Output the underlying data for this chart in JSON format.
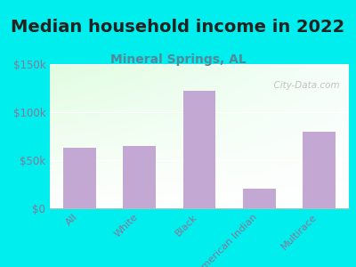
{
  "title": "Median household income in 2022",
  "subtitle": "Mineral Springs, AL",
  "categories": [
    "All",
    "White",
    "Black",
    "American Indian",
    "Multirace"
  ],
  "values": [
    63000,
    65000,
    122000,
    20000,
    80000
  ],
  "bar_color": "#c4a8d4",
  "title_fontsize": 14,
  "title_color": "#222222",
  "subtitle_fontsize": 10,
  "subtitle_color": "#558899",
  "tick_color": "#887799",
  "background_outer": "#00eeee",
  "ylim": [
    0,
    150000
  ],
  "yticks": [
    0,
    50000,
    100000,
    150000
  ],
  "ytick_labels": [
    "$0",
    "$50k",
    "$100k",
    "$150k"
  ],
  "watermark": "  City-Data.com"
}
